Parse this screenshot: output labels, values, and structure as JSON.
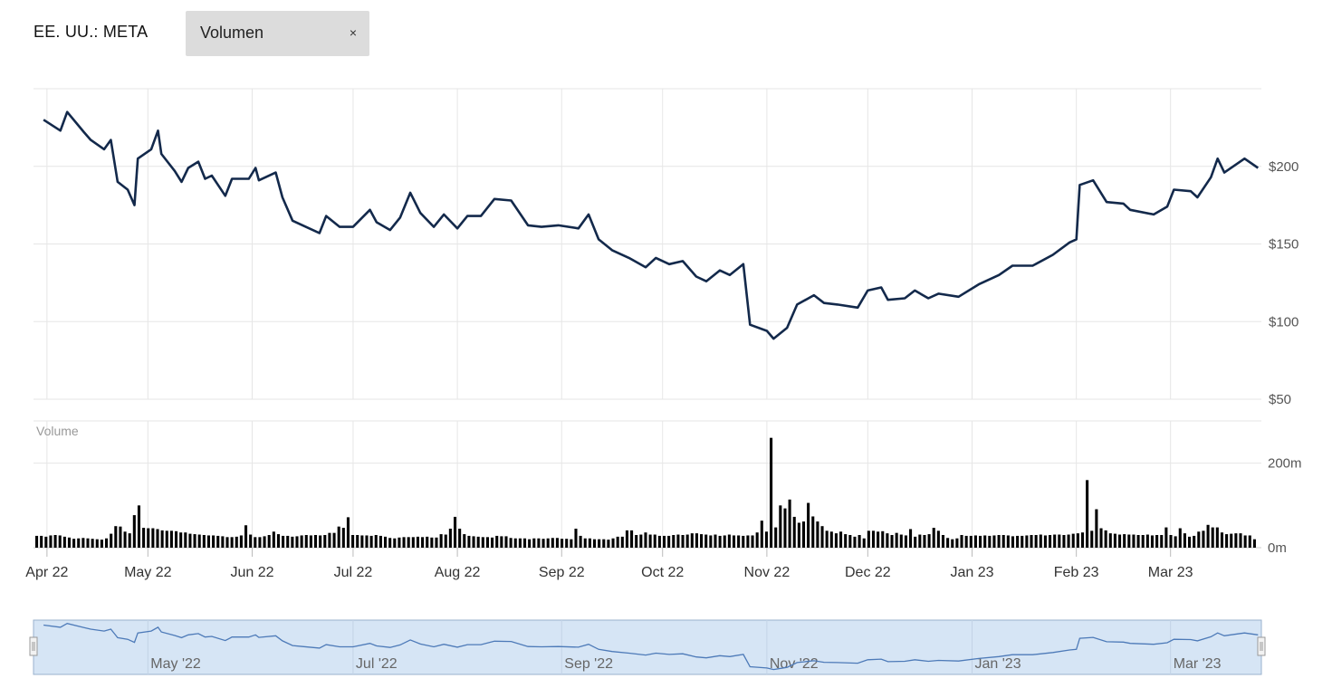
{
  "header": {
    "symbol": "EE. UU.: META",
    "indicator_label": "Volumen",
    "close_glyph": "×"
  },
  "colors": {
    "price_line": "#13294b",
    "volume_bar": "#000000",
    "grid": "#e6e6e6",
    "navigator_fill": "#d6e5f5",
    "navigator_line": "#4d7ab8",
    "navigator_border": "#9ab1cd",
    "chip_bg": "#dcdcdc"
  },
  "icons": {
    "close": "close-icon",
    "nav_handle": "drag-handle-icon"
  },
  "chart_data": {
    "type": "line",
    "title": "",
    "price": {
      "name": "",
      "y_ticks": [
        50,
        100,
        150,
        200
      ],
      "y_tick_labels": [
        "$50",
        "$100",
        "$150",
        "$200"
      ],
      "ylim": [
        50,
        250
      ],
      "points": [
        [
          "2022-03-31",
          230
        ],
        [
          "2022-04-05",
          223
        ],
        [
          "2022-04-07",
          235
        ],
        [
          "2022-04-12",
          222
        ],
        [
          "2022-04-14",
          217
        ],
        [
          "2022-04-18",
          211
        ],
        [
          "2022-04-20",
          217
        ],
        [
          "2022-04-22",
          190
        ],
        [
          "2022-04-25",
          185
        ],
        [
          "2022-04-27",
          175
        ],
        [
          "2022-04-28",
          205
        ],
        [
          "2022-05-02",
          211
        ],
        [
          "2022-05-04",
          223
        ],
        [
          "2022-05-05",
          208
        ],
        [
          "2022-05-09",
          197
        ],
        [
          "2022-05-11",
          190
        ],
        [
          "2022-05-13",
          199
        ],
        [
          "2022-05-16",
          203
        ],
        [
          "2022-05-18",
          192
        ],
        [
          "2022-05-20",
          194
        ],
        [
          "2022-05-24",
          181
        ],
        [
          "2022-05-26",
          192
        ],
        [
          "2022-05-31",
          192
        ],
        [
          "2022-06-02",
          199
        ],
        [
          "2022-06-03",
          191
        ],
        [
          "2022-06-08",
          196
        ],
        [
          "2022-06-10",
          180
        ],
        [
          "2022-06-13",
          165
        ],
        [
          "2022-06-16",
          162
        ],
        [
          "2022-06-21",
          157
        ],
        [
          "2022-06-23",
          168
        ],
        [
          "2022-06-27",
          161
        ],
        [
          "2022-07-01",
          161
        ],
        [
          "2022-07-06",
          172
        ],
        [
          "2022-07-08",
          164
        ],
        [
          "2022-07-12",
          159
        ],
        [
          "2022-07-15",
          167
        ],
        [
          "2022-07-18",
          183
        ],
        [
          "2022-07-21",
          170
        ],
        [
          "2022-07-25",
          161
        ],
        [
          "2022-07-28",
          169
        ],
        [
          "2022-08-01",
          160
        ],
        [
          "2022-08-04",
          168
        ],
        [
          "2022-08-08",
          168
        ],
        [
          "2022-08-12",
          179
        ],
        [
          "2022-08-17",
          178
        ],
        [
          "2022-08-22",
          162
        ],
        [
          "2022-08-26",
          161
        ],
        [
          "2022-08-31",
          162
        ],
        [
          "2022-09-06",
          160
        ],
        [
          "2022-09-09",
          169
        ],
        [
          "2022-09-12",
          153
        ],
        [
          "2022-09-16",
          146
        ],
        [
          "2022-09-21",
          141
        ],
        [
          "2022-09-26",
          135
        ],
        [
          "2022-09-29",
          141
        ],
        [
          "2022-10-03",
          137
        ],
        [
          "2022-10-07",
          139
        ],
        [
          "2022-10-11",
          129
        ],
        [
          "2022-10-14",
          126
        ],
        [
          "2022-10-18",
          133
        ],
        [
          "2022-10-21",
          130
        ],
        [
          "2022-10-25",
          137
        ],
        [
          "2022-10-27",
          98
        ],
        [
          "2022-11-01",
          94
        ],
        [
          "2022-11-03",
          89
        ],
        [
          "2022-11-07",
          96
        ],
        [
          "2022-11-10",
          111
        ],
        [
          "2022-11-15",
          117
        ],
        [
          "2022-11-18",
          112
        ],
        [
          "2022-11-22",
          111
        ],
        [
          "2022-11-28",
          109
        ],
        [
          "2022-12-01",
          120
        ],
        [
          "2022-12-05",
          122
        ],
        [
          "2022-12-07",
          114
        ],
        [
          "2022-12-12",
          115
        ],
        [
          "2022-12-15",
          120
        ],
        [
          "2022-12-19",
          115
        ],
        [
          "2022-12-22",
          118
        ],
        [
          "2022-12-28",
          116
        ],
        [
          "2023-01-03",
          124
        ],
        [
          "2023-01-09",
          130
        ],
        [
          "2023-01-13",
          136
        ],
        [
          "2023-01-19",
          136
        ],
        [
          "2023-01-25",
          143
        ],
        [
          "2023-01-30",
          151
        ],
        [
          "2023-02-01",
          153
        ],
        [
          "2023-02-02",
          188
        ],
        [
          "2023-02-06",
          191
        ],
        [
          "2023-02-10",
          177
        ],
        [
          "2023-02-15",
          176
        ],
        [
          "2023-02-17",
          172
        ],
        [
          "2023-02-24",
          169
        ],
        [
          "2023-02-28",
          174
        ],
        [
          "2023-03-02",
          185
        ],
        [
          "2023-03-07",
          184
        ],
        [
          "2023-03-09",
          180
        ],
        [
          "2023-03-13",
          193
        ],
        [
          "2023-03-15",
          205
        ],
        [
          "2023-03-17",
          196
        ],
        [
          "2023-03-21",
          202
        ],
        [
          "2023-03-23",
          205
        ],
        [
          "2023-03-27",
          199
        ]
      ]
    },
    "volume": {
      "name": "Volume",
      "y_ticks": [
        0,
        200
      ],
      "y_tick_labels": [
        "0m",
        "200m"
      ],
      "ylim": [
        0,
        300
      ],
      "bars_m": [
        28,
        28,
        26,
        29,
        30,
        29,
        26,
        24,
        21,
        22,
        23,
        22,
        21,
        20,
        19,
        22,
        33,
        51,
        50,
        38,
        34,
        77,
        100,
        47,
        46,
        46,
        44,
        41,
        40,
        40,
        39,
        36,
        36,
        33,
        32,
        31,
        30,
        29,
        29,
        28,
        27,
        25,
        25,
        26,
        29,
        53,
        31,
        25,
        25,
        27,
        30,
        38,
        32,
        28,
        28,
        26,
        27,
        29,
        30,
        29,
        30,
        29,
        30,
        35,
        35,
        50,
        47,
        72,
        30,
        30,
        29,
        29,
        28,
        30,
        28,
        26,
        23,
        22,
        24,
        25,
        25,
        25,
        26,
        25,
        26,
        24,
        24,
        32,
        31,
        45,
        73,
        45,
        32,
        28,
        27,
        26,
        25,
        25,
        24,
        28,
        27,
        27,
        23,
        22,
        22,
        22,
        20,
        22,
        22,
        21,
        22,
        23,
        23,
        21,
        21,
        20,
        45,
        28,
        22,
        22,
        20,
        20,
        20,
        19,
        22,
        26,
        26,
        41,
        41,
        30,
        31,
        36,
        31,
        31,
        28,
        28,
        28,
        30,
        31,
        30,
        31,
        34,
        34,
        32,
        31,
        29,
        31,
        28,
        29,
        31,
        29,
        29,
        28,
        29,
        29,
        36,
        64,
        38,
        260,
        48,
        100,
        93,
        114,
        73,
        59,
        62,
        106,
        74,
        62,
        51,
        40,
        38,
        34,
        38,
        32,
        30,
        26,
        30,
        22,
        40,
        40,
        38,
        39,
        34,
        30,
        35,
        31,
        29,
        44,
        26,
        31,
        30,
        32,
        47,
        40,
        30,
        23,
        20,
        22,
        30,
        28,
        28,
        29,
        28,
        29,
        28,
        29,
        30,
        30,
        29,
        27,
        28,
        28,
        29,
        30,
        30,
        31,
        29,
        30,
        31,
        31,
        30,
        31,
        33,
        34,
        36,
        160,
        40,
        91,
        46,
        41,
        34,
        33,
        31,
        32,
        31,
        31,
        30,
        30,
        31,
        29,
        30,
        30,
        48,
        30,
        27,
        46,
        34,
        26,
        28,
        38,
        40,
        54,
        48,
        48,
        36,
        32,
        33,
        34,
        34,
        29,
        29,
        20
      ],
      "note": ""
    },
    "x_tick_labels": [
      "Apr 22",
      "May 22",
      "Jun 22",
      "Jul 22",
      "Aug 22",
      "Sep 22",
      "Oct 22",
      "Nov 22",
      "Dec 22",
      "Jan 23",
      "Feb 23",
      "Mar 23"
    ],
    "x_ticks": [
      "2022-04-01",
      "2022-05-01",
      "2022-06-01",
      "2022-07-01",
      "2022-08-01",
      "2022-09-01",
      "2022-10-01",
      "2022-11-01",
      "2022-12-01",
      "2023-01-01",
      "2023-02-01",
      "2023-03-01"
    ],
    "x_range": [
      "2022-03-28",
      "2023-03-28"
    ],
    "navigator": {
      "labels": [
        "May '22",
        "Jul '22",
        "Sep '22",
        "Nov '22",
        "Jan '23",
        "Mar '23"
      ],
      "ticks": [
        "2022-05-01",
        "2022-07-01",
        "2022-09-01",
        "2022-11-01",
        "2023-01-01",
        "2023-03-01"
      ]
    },
    "grid": true,
    "legend": "none"
  }
}
